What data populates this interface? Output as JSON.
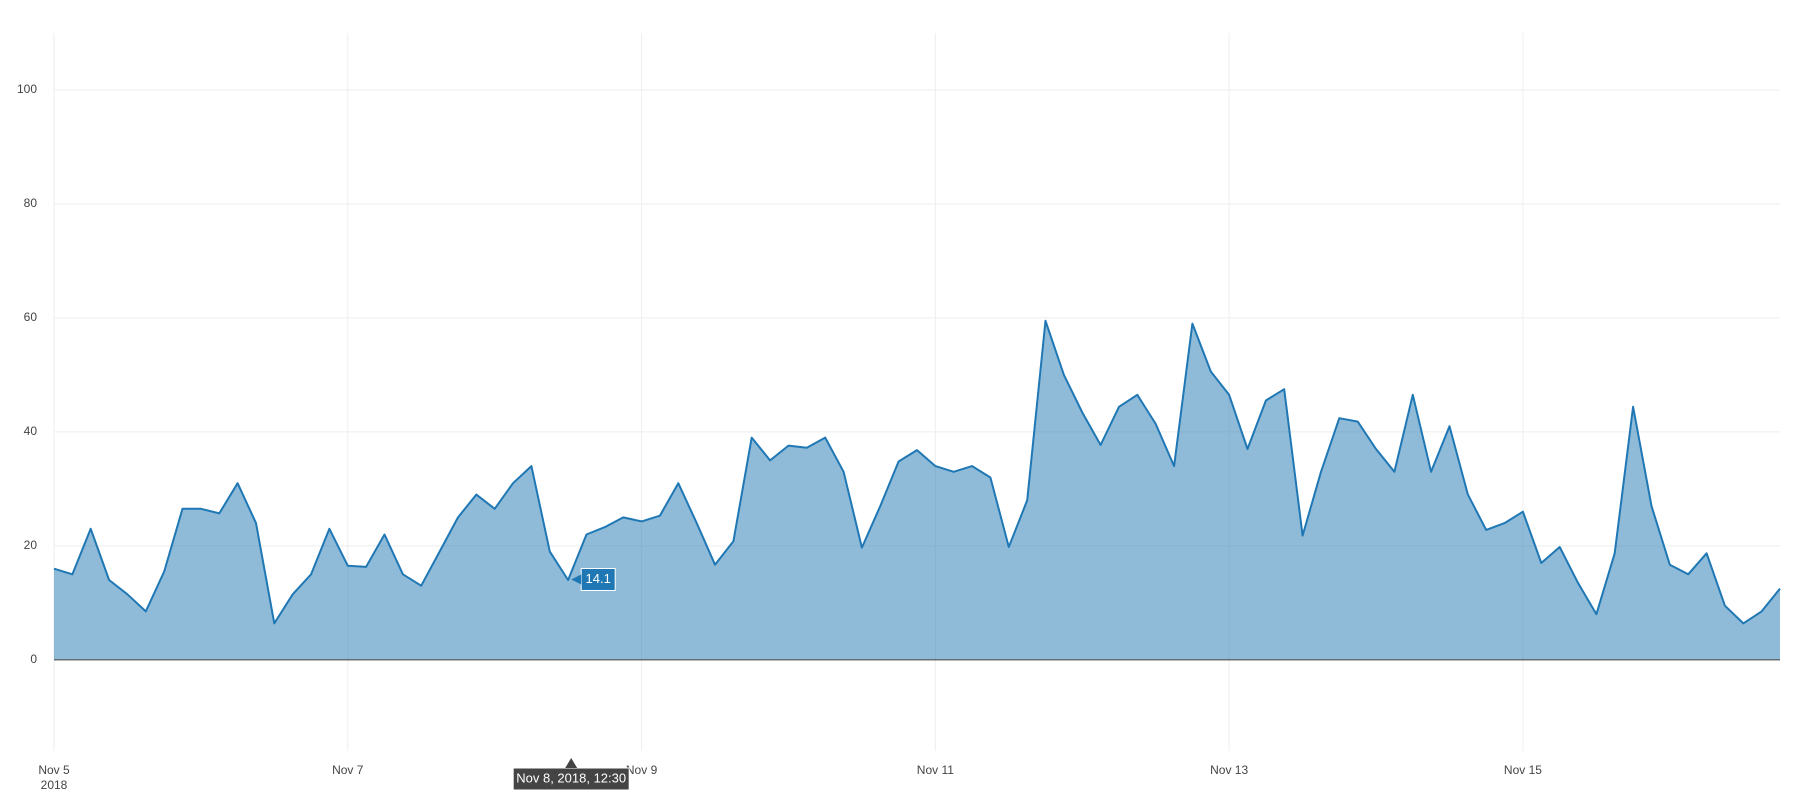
{
  "chart_data": {
    "type": "area",
    "color": "#1f77b4",
    "fill_color": "rgba(31,119,180,0.5)",
    "grid": true,
    "zeroline": true,
    "xlim": [
      "2018-11-05T00:00",
      "2018-11-16T18:00"
    ],
    "ylim": [
      -16,
      110
    ],
    "yticks": [
      0,
      20,
      40,
      60,
      80,
      100
    ],
    "xticks": [
      {
        "value": "2018-11-05T00:00",
        "label": "Nov 5"
      },
      {
        "value": "2018-11-07T00:00",
        "label": "Nov 7"
      },
      {
        "value": "2018-11-09T00:00",
        "label": "Nov 9"
      },
      {
        "value": "2018-11-11T00:00",
        "label": "Nov 11"
      },
      {
        "value": "2018-11-13T00:00",
        "label": "Nov 13"
      },
      {
        "value": "2018-11-15T00:00",
        "label": "Nov 15"
      }
    ],
    "xtick_year": "2018",
    "x": [
      "2018-11-05T00:00",
      "2018-11-05T03:00",
      "2018-11-05T06:00",
      "2018-11-05T09:00",
      "2018-11-05T12:00",
      "2018-11-05T15:00",
      "2018-11-05T18:00",
      "2018-11-05T21:00",
      "2018-11-06T00:00",
      "2018-11-06T03:00",
      "2018-11-06T06:00",
      "2018-11-06T09:00",
      "2018-11-06T12:00",
      "2018-11-06T15:00",
      "2018-11-06T18:00",
      "2018-11-06T21:00",
      "2018-11-07T00:00",
      "2018-11-07T03:00",
      "2018-11-07T06:00",
      "2018-11-07T09:00",
      "2018-11-07T12:00",
      "2018-11-07T15:00",
      "2018-11-07T18:00",
      "2018-11-07T21:00",
      "2018-11-08T00:00",
      "2018-11-08T03:00",
      "2018-11-08T06:00",
      "2018-11-08T09:00",
      "2018-11-08T12:00",
      "2018-11-08T15:00",
      "2018-11-08T18:00",
      "2018-11-08T21:00",
      "2018-11-09T00:00",
      "2018-11-09T03:00",
      "2018-11-09T06:00",
      "2018-11-09T09:00",
      "2018-11-09T12:00",
      "2018-11-09T15:00",
      "2018-11-09T18:00",
      "2018-11-09T21:00",
      "2018-11-10T00:00",
      "2018-11-10T03:00",
      "2018-11-10T06:00",
      "2018-11-10T09:00",
      "2018-11-10T12:00",
      "2018-11-10T15:00",
      "2018-11-10T18:00",
      "2018-11-10T21:00",
      "2018-11-11T00:00",
      "2018-11-11T03:00",
      "2018-11-11T06:00",
      "2018-11-11T09:00",
      "2018-11-11T12:00",
      "2018-11-11T15:00",
      "2018-11-11T18:00",
      "2018-11-11T21:00",
      "2018-11-12T00:00",
      "2018-11-12T03:00",
      "2018-11-12T06:00",
      "2018-11-12T09:00",
      "2018-11-12T12:00",
      "2018-11-12T15:00",
      "2018-11-12T18:00",
      "2018-11-12T21:00",
      "2018-11-13T00:00",
      "2018-11-13T03:00",
      "2018-11-13T06:00",
      "2018-11-13T09:00",
      "2018-11-13T12:00",
      "2018-11-13T15:00",
      "2018-11-13T18:00",
      "2018-11-13T21:00",
      "2018-11-14T00:00",
      "2018-11-14T03:00",
      "2018-11-14T06:00",
      "2018-11-14T09:00",
      "2018-11-14T12:00",
      "2018-11-14T15:00",
      "2018-11-14T18:00",
      "2018-11-14T21:00",
      "2018-11-15T00:00",
      "2018-11-15T03:00",
      "2018-11-15T06:00",
      "2018-11-15T09:00",
      "2018-11-15T12:00",
      "2018-11-15T15:00",
      "2018-11-15T18:00",
      "2018-11-15T21:00",
      "2018-11-16T00:00",
      "2018-11-16T03:00",
      "2018-11-16T06:00",
      "2018-11-16T09:00",
      "2018-11-16T12:00",
      "2018-11-16T15:00",
      "2018-11-16T18:00"
    ],
    "values": [
      16,
      15,
      23,
      14,
      11.5,
      8.5,
      15.5,
      26.5,
      26.5,
      25.7,
      31,
      24,
      6.4,
      11.5,
      15,
      23,
      16.5,
      16.3,
      22,
      15,
      13,
      19,
      25,
      29,
      26.5,
      31,
      34,
      19,
      14,
      22,
      23.3,
      25,
      24.3,
      25.3,
      31,
      24,
      16.7,
      20.8,
      39,
      35,
      37.6,
      37.2,
      39,
      33,
      19.7,
      27,
      34.8,
      36.8,
      34,
      33,
      34,
      32,
      19.8,
      28,
      59.5,
      50,
      43.4,
      37.7,
      44.4,
      46.5,
      41.4,
      34,
      59,
      50.6,
      46.5,
      37,
      45.5,
      47.5,
      21.8,
      33,
      42.4,
      41.8,
      37,
      33,
      46.5,
      33,
      41,
      29,
      22.8,
      24,
      26,
      17,
      19.8,
      13.5,
      8,
      18.7,
      44.4,
      27,
      16.7,
      15,
      18.7,
      9.5,
      6.4,
      8.5,
      12.5
    ],
    "hover": {
      "x": "2018-11-08T12:30",
      "x_label": "Nov 8, 2018, 12:30",
      "value": 14.1
    }
  }
}
